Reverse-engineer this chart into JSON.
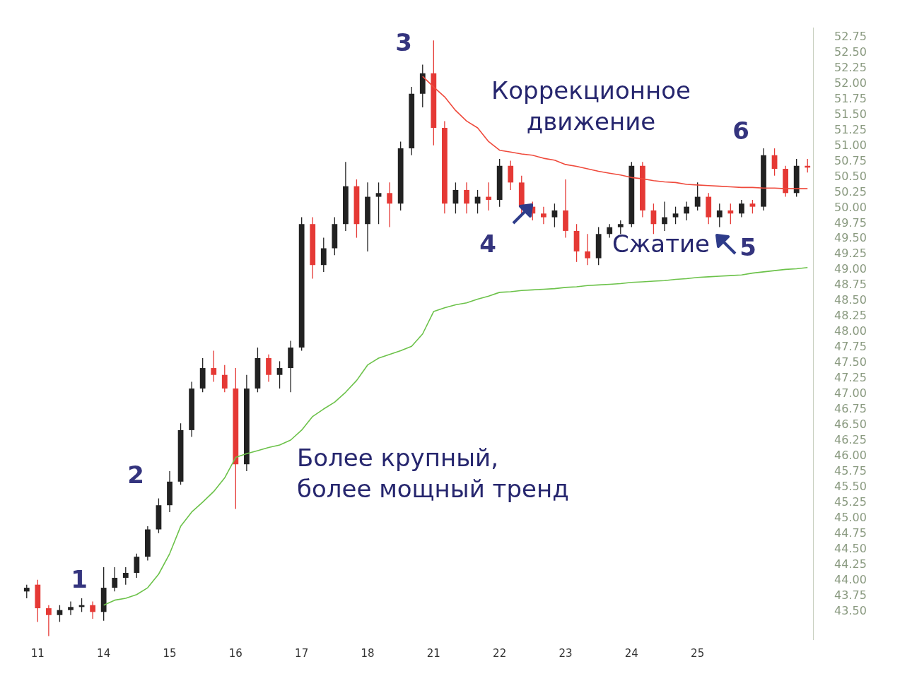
{
  "chart_data": {
    "type": "candlestick",
    "categories": [
      null,
      "11",
      null,
      null,
      null,
      null,
      null,
      "14",
      null,
      null,
      null,
      null,
      null,
      "15",
      null,
      null,
      null,
      null,
      null,
      "16",
      null,
      null,
      null,
      null,
      null,
      "17",
      null,
      null,
      null,
      null,
      null,
      "18",
      null,
      null,
      null,
      null,
      null,
      "21",
      null,
      null,
      null,
      null,
      null,
      "22",
      null,
      null,
      null,
      null,
      null,
      "23",
      null,
      null,
      null,
      null,
      null,
      "24",
      null,
      null,
      null,
      null,
      null,
      "25",
      null,
      null,
      null,
      null,
      null,
      null,
      null,
      null,
      null,
      null
    ],
    "ylim": [
      43.05,
      52.9
    ],
    "yticks": [
      {
        "value": 43.5,
        "label": "43.50"
      },
      43.75,
      {
        "value": 44,
        "label": "44.00"
      },
      44.25,
      {
        "value": 44.5,
        "label": "44.50"
      },
      44.75,
      {
        "value": 45,
        "label": "45.00"
      },
      45.25,
      {
        "value": 45.5,
        "label": "45.50"
      },
      45.75,
      {
        "value": 46,
        "label": "46.00"
      },
      46.25,
      {
        "value": 46.5,
        "label": "46.50"
      },
      46.75,
      {
        "value": 47,
        "label": "47.00"
      },
      47.25,
      {
        "value": 47.5,
        "label": "47.50"
      },
      47.75,
      {
        "value": 48,
        "label": "48.00"
      },
      48.25,
      {
        "value": 48.5,
        "label": "48.50"
      },
      48.75,
      {
        "value": 49,
        "label": "49.00"
      },
      49.25,
      {
        "value": 49.5,
        "label": "49.50"
      },
      49.75,
      {
        "value": 50,
        "label": "50.00"
      },
      50.25,
      {
        "value": 50.5,
        "label": "50.50"
      },
      50.75,
      {
        "value": 51,
        "label": "51.00"
      },
      51.25,
      {
        "value": 51.5,
        "label": "51.50"
      },
      51.75,
      {
        "value": 52,
        "label": "52.00"
      },
      52.25,
      {
        "value": 52.5,
        "label": "52.50"
      },
      52.75
    ],
    "ohlc": [
      [
        43.82,
        43.93,
        43.71,
        43.88
      ],
      [
        43.93,
        44.01,
        43.33,
        43.55
      ],
      [
        43.55,
        43.6,
        43.1,
        43.44
      ],
      [
        43.44,
        43.6,
        43.33,
        43.52
      ],
      [
        43.52,
        43.66,
        43.44,
        43.57
      ],
      [
        43.57,
        43.71,
        43.49,
        43.6
      ],
      [
        43.6,
        43.66,
        43.38,
        43.49
      ],
      [
        43.49,
        44.21,
        43.35,
        43.88
      ],
      [
        43.88,
        44.21,
        43.82,
        44.04
      ],
      [
        44.04,
        44.21,
        43.93,
        44.12
      ],
      [
        44.12,
        44.43,
        44.04,
        44.38
      ],
      [
        44.38,
        44.87,
        44.32,
        44.82
      ],
      [
        44.82,
        45.32,
        44.76,
        45.21
      ],
      [
        45.21,
        45.76,
        45.1,
        45.59
      ],
      [
        45.59,
        46.53,
        45.54,
        46.42
      ],
      [
        46.42,
        47.2,
        46.31,
        47.09
      ],
      [
        47.09,
        47.58,
        47.03,
        47.42
      ],
      [
        47.42,
        47.7,
        47.2,
        47.31
      ],
      [
        47.31,
        47.47,
        47.03,
        47.09
      ],
      [
        47.09,
        47.42,
        45.15,
        45.87
      ],
      [
        45.87,
        47.31,
        45.76,
        47.09
      ],
      [
        47.09,
        47.75,
        47.03,
        47.58
      ],
      [
        47.58,
        47.64,
        47.2,
        47.31
      ],
      [
        47.31,
        47.53,
        47.09,
        47.42
      ],
      [
        47.42,
        47.86,
        47.03,
        47.75
      ],
      [
        47.75,
        49.85,
        47.7,
        49.74
      ],
      [
        49.74,
        49.85,
        48.86,
        49.08
      ],
      [
        49.08,
        49.52,
        48.97,
        49.35
      ],
      [
        49.35,
        49.85,
        49.24,
        49.74
      ],
      [
        49.74,
        50.74,
        49.63,
        50.35
      ],
      [
        50.35,
        50.46,
        49.52,
        49.74
      ],
      [
        49.74,
        50.41,
        49.3,
        50.18
      ],
      [
        50.18,
        50.41,
        49.74,
        50.24
      ],
      [
        50.24,
        50.41,
        49.69,
        50.07
      ],
      [
        50.07,
        51.07,
        49.96,
        50.96
      ],
      [
        50.96,
        51.95,
        50.85,
        51.84
      ],
      [
        51.84,
        52.31,
        51.62,
        52.17
      ],
      [
        52.17,
        52.7,
        51.01,
        51.29
      ],
      [
        51.29,
        51.4,
        49.91,
        50.07
      ],
      [
        50.07,
        50.41,
        49.91,
        50.29
      ],
      [
        50.29,
        50.41,
        49.91,
        50.07
      ],
      [
        50.07,
        50.29,
        49.91,
        50.18
      ],
      [
        50.18,
        50.41,
        49.96,
        50.13
      ],
      [
        50.13,
        50.79,
        50.02,
        50.68
      ],
      [
        50.68,
        50.76,
        50.29,
        50.41
      ],
      [
        50.41,
        50.52,
        49.91,
        50.02
      ],
      [
        50.02,
        50.1,
        49.8,
        49.91
      ],
      [
        49.91,
        50.02,
        49.74,
        49.85
      ],
      [
        49.85,
        50.07,
        49.69,
        49.96
      ],
      [
        49.96,
        50.46,
        49.52,
        49.63
      ],
      [
        49.63,
        49.74,
        49.13,
        49.3
      ],
      [
        49.3,
        49.58,
        49.08,
        49.19
      ],
      [
        49.19,
        49.69,
        49.08,
        49.58
      ],
      [
        49.58,
        49.74,
        49.52,
        49.69
      ],
      [
        49.69,
        49.8,
        49.58,
        49.74
      ],
      [
        49.74,
        50.74,
        49.69,
        50.68
      ],
      [
        50.68,
        50.74,
        49.85,
        49.96
      ],
      [
        49.96,
        50.07,
        49.58,
        49.74
      ],
      [
        49.74,
        50.1,
        49.63,
        49.85
      ],
      [
        49.85,
        50.02,
        49.74,
        49.91
      ],
      [
        49.91,
        50.1,
        49.8,
        50.02
      ],
      [
        50.02,
        50.41,
        49.96,
        50.18
      ],
      [
        50.18,
        50.24,
        49.74,
        49.85
      ],
      [
        49.85,
        50.07,
        49.69,
        49.96
      ],
      [
        49.96,
        50.07,
        49.74,
        49.91
      ],
      [
        49.91,
        50.13,
        49.85,
        50.07
      ],
      [
        50.07,
        50.13,
        49.91,
        50.02
      ],
      [
        50.02,
        50.96,
        49.96,
        50.85
      ],
      [
        50.85,
        50.96,
        50.52,
        50.63
      ],
      [
        50.63,
        50.68,
        50.18,
        50.24
      ],
      [
        50.24,
        50.79,
        50.18,
        50.68
      ],
      [
        50.68,
        50.79,
        50.57,
        50.65
      ]
    ],
    "colors": [
      "#222222",
      "#e53935",
      "#e53935",
      "#222222",
      "#222222",
      "#222222",
      "#e53935",
      "#222222",
      "#222222",
      "#222222",
      "#222222",
      "#222222",
      "#222222",
      "#222222",
      "#222222",
      "#222222",
      "#222222",
      "#e53935",
      "#e53935",
      "#e53935",
      "#222222",
      "#222222",
      "#e53935",
      "#222222",
      "#222222",
      "#222222",
      "#e53935",
      "#222222",
      "#222222",
      "#222222",
      "#e53935",
      "#222222",
      "#222222",
      "#e53935",
      "#222222",
      "#222222",
      "#222222",
      "#e53935",
      "#e53935",
      "#222222",
      "#e53935",
      "#222222",
      "#e53935",
      "#222222",
      "#e53935",
      "#e53935",
      "#e53935",
      "#e53935",
      "#222222",
      "#e53935",
      "#e53935",
      "#e53935",
      "#222222",
      "#222222",
      "#222222",
      "#222222",
      "#e53935",
      "#e53935",
      "#222222",
      "#222222",
      "#222222",
      "#222222",
      "#e53935",
      "#222222",
      "#e53935",
      "#222222",
      "#e53935",
      "#222222",
      "#e53935",
      "#e53935",
      "#222222",
      "#e53935"
    ],
    "marker": "none",
    "series": [
      {
        "type": "line",
        "color": "#ef4a3c",
        "values": [
          null,
          null,
          null,
          null,
          null,
          null,
          null,
          null,
          null,
          null,
          null,
          null,
          null,
          null,
          null,
          null,
          null,
          null,
          null,
          null,
          null,
          null,
          null,
          null,
          null,
          null,
          null,
          null,
          null,
          null,
          null,
          null,
          null,
          null,
          null,
          null,
          52.12,
          51.95,
          51.79,
          51.57,
          51.4,
          51.29,
          51.07,
          50.93,
          50.9,
          50.87,
          50.85,
          50.8,
          50.77,
          50.7,
          50.67,
          50.63,
          50.59,
          50.56,
          50.53,
          50.49,
          50.47,
          50.44,
          50.42,
          50.41,
          50.38,
          50.37,
          50.36,
          50.35,
          50.34,
          50.33,
          50.33,
          50.32,
          50.32,
          50.31,
          50.31,
          50.31
        ]
      },
      {
        "type": "line",
        "color": "#6cc24a",
        "values": [
          null,
          null,
          null,
          null,
          null,
          null,
          null,
          43.6,
          43.68,
          43.71,
          43.77,
          43.88,
          44.1,
          44.43,
          44.87,
          45.1,
          45.26,
          45.43,
          45.65,
          45.98,
          46.04,
          46.09,
          46.14,
          46.18,
          46.26,
          46.42,
          46.64,
          46.76,
          46.87,
          47.03,
          47.22,
          47.47,
          47.58,
          47.64,
          47.7,
          47.77,
          47.97,
          48.33,
          48.39,
          48.44,
          48.47,
          48.53,
          48.58,
          48.64,
          48.65,
          48.67,
          48.68,
          48.69,
          48.7,
          48.72,
          48.73,
          48.75,
          48.76,
          48.77,
          48.78,
          48.8,
          48.81,
          48.82,
          48.83,
          48.85,
          48.86,
          48.88,
          48.89,
          48.9,
          48.91,
          48.92,
          48.95,
          48.97,
          48.99,
          49.01,
          49.02,
          49.04
        ]
      }
    ],
    "annotations": [
      "1",
      "2",
      "3",
      "Коррекционное\nдвижение",
      "4",
      "Сжатие",
      "5",
      "6",
      "Более крупный,\nболее мощный тренд"
    ]
  }
}
